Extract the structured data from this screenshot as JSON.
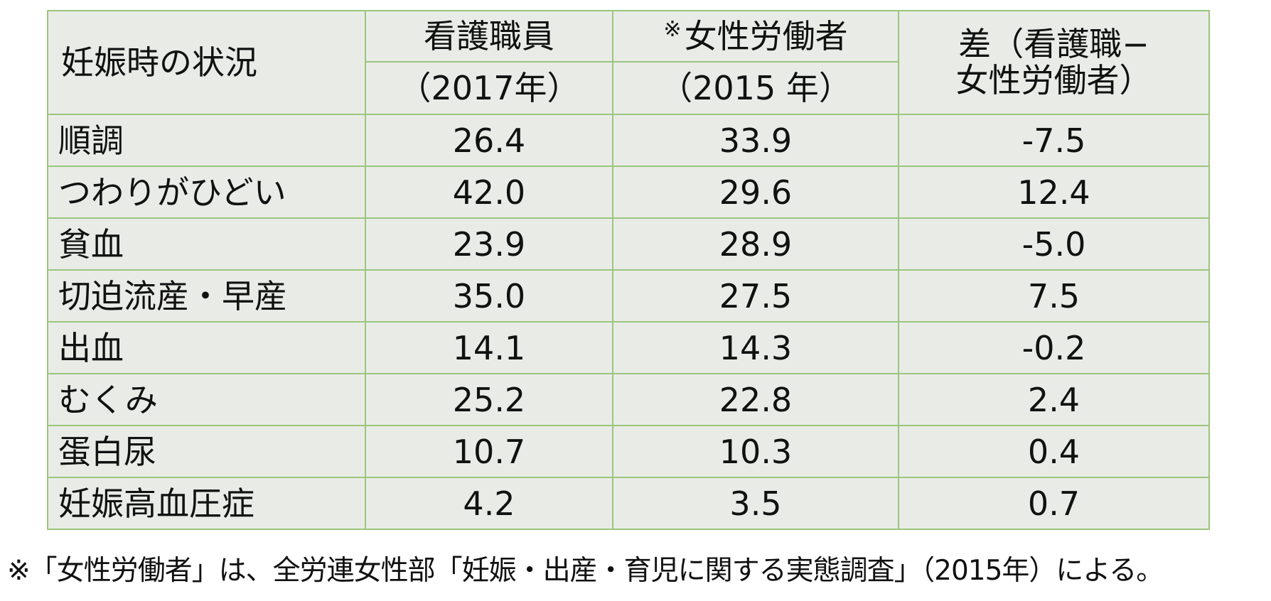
{
  "table": {
    "headers": {
      "situation": "妊娠時の状況",
      "nurses_name": "看護職員",
      "nurses_year": "（2017年）",
      "women_mark": "※",
      "women_name": "女性労働者",
      "women_year": "（2015 年）",
      "diff_line1": "差（看護職−",
      "diff_line2": "女性労働者）"
    },
    "rows": [
      {
        "label": "順調",
        "nurses": "26.4",
        "women": "33.9",
        "diff": "-7.5"
      },
      {
        "label": "つわりがひどい",
        "nurses": "42.0",
        "women": "29.6",
        "diff": "12.4"
      },
      {
        "label": "貧血",
        "nurses": "23.9",
        "women": "28.9",
        "diff": "-5.0"
      },
      {
        "label": "切迫流産・早産",
        "nurses": "35.0",
        "women": "27.5",
        "diff": "7.5"
      },
      {
        "label": "出血",
        "nurses": "14.1",
        "women": "14.3",
        "diff": "-0.2"
      },
      {
        "label": "むくみ",
        "nurses": "25.2",
        "women": "22.8",
        "diff": "2.4"
      },
      {
        "label": "蛋白尿",
        "nurses": "10.7",
        "women": "10.3",
        "diff": "0.4"
      },
      {
        "label": "妊娠高血圧症",
        "nurses": "4.2",
        "women": "3.5",
        "diff": "0.7"
      }
    ]
  },
  "footnote": "※「女性労働者」は、全労連女性部「妊娠・出産・育児に関する実態調査」（2015年）による。",
  "colors": {
    "cell_background": "#e9ece6",
    "border": "#9bc57d"
  }
}
